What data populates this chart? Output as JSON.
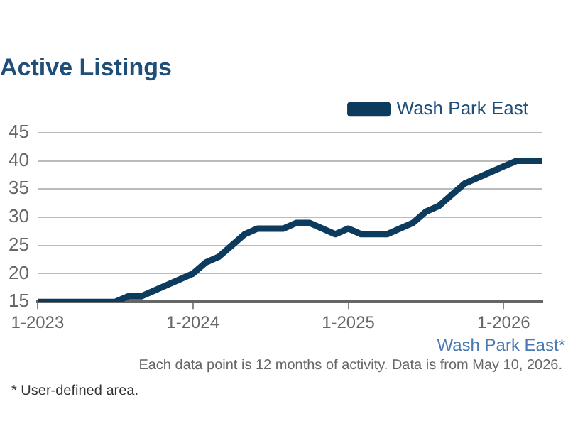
{
  "chart_data": {
    "type": "line",
    "title": "Active Listings",
    "x": [
      "2023-01",
      "2023-02",
      "2023-03",
      "2023-04",
      "2023-05",
      "2023-06",
      "2023-07",
      "2023-08",
      "2023-09",
      "2023-10",
      "2023-11",
      "2023-12",
      "2024-01",
      "2024-02",
      "2024-03",
      "2024-04",
      "2024-05",
      "2024-06",
      "2024-07",
      "2024-08",
      "2024-09",
      "2024-10",
      "2024-11",
      "2024-12",
      "2025-01",
      "2025-02",
      "2025-03",
      "2025-04",
      "2025-05",
      "2025-06",
      "2025-07",
      "2025-08",
      "2025-09",
      "2025-10",
      "2025-11",
      "2025-12",
      "2026-01",
      "2026-02",
      "2026-03",
      "2026-04"
    ],
    "series": [
      {
        "name": "Wash Park East",
        "color": "#0d3b5e",
        "values": [
          15,
          15,
          15,
          15,
          15,
          15,
          15,
          16,
          16,
          17,
          18,
          19,
          20,
          22,
          23,
          25,
          27,
          28,
          28,
          28,
          29,
          29,
          28,
          27,
          28,
          27,
          27,
          27,
          28,
          29,
          31,
          32,
          34,
          36,
          37,
          38,
          39,
          40,
          40,
          40
        ]
      }
    ],
    "xlim": [
      "2023-01",
      "2026-04"
    ],
    "xticks": [
      {
        "value": "2023-01",
        "label": "1-2023"
      },
      {
        "value": "2024-01",
        "label": "1-2024"
      },
      {
        "value": "2025-01",
        "label": "1-2025"
      },
      {
        "value": "2026-01",
        "label": "1-2026"
      }
    ],
    "ylim": [
      15,
      45
    ],
    "yticks": [
      15,
      20,
      25,
      30,
      35,
      40,
      45
    ],
    "grid": "y",
    "legend": "top right",
    "marker": "none",
    "line_style": "solid",
    "annotations": [
      "Wash Park East*",
      "Each data point is 12 months of activity. Data is from May 10, 2026.",
      "* User-defined area."
    ]
  }
}
